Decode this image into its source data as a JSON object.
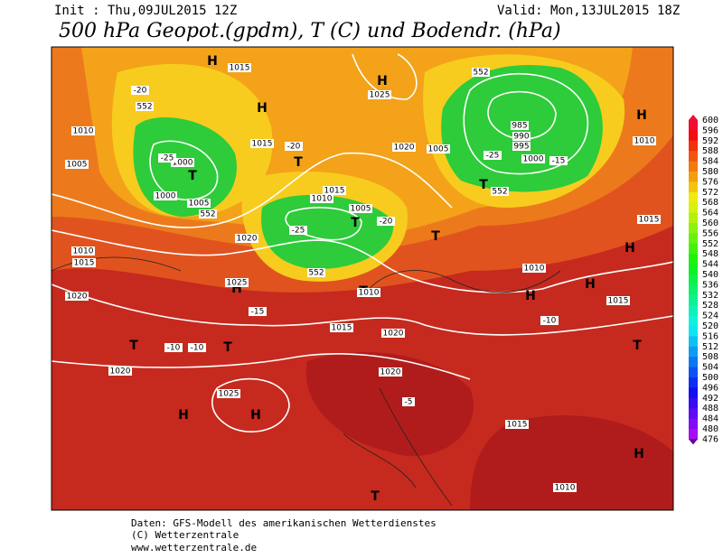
{
  "header": {
    "init": "Init : Thu,09JUL2015 12Z",
    "valid": "Valid: Mon,13JUL2015 18Z",
    "title": "500 hPa Geopot.(gpdm), T (C) und Bodendr. (hPa)"
  },
  "colorbar": {
    "values": [
      "600",
      "596",
      "592",
      "588",
      "584",
      "580",
      "576",
      "572",
      "568",
      "564",
      "560",
      "556",
      "552",
      "548",
      "544",
      "540",
      "536",
      "532",
      "528",
      "524",
      "520",
      "516",
      "512",
      "508",
      "504",
      "500",
      "496",
      "492",
      "488",
      "484",
      "480",
      "476"
    ]
  },
  "map": {
    "labels": [
      "H",
      "H",
      "H",
      "H",
      "H",
      "H",
      "H",
      "H",
      "H",
      "H",
      "H",
      "T",
      "T",
      "T",
      "T",
      "T",
      "T",
      "T",
      "T",
      "T",
      "T",
      "1015",
      "1025",
      "1010",
      "1005",
      "1000",
      "1000",
      "1005",
      "1015",
      "1020",
      "1015",
      "1010",
      "1005",
      "1020",
      "1010",
      "1015",
      "1020",
      "1025",
      "1010",
      "1015",
      "1020",
      "1020",
      "1025",
      "1020",
      "985",
      "990",
      "995",
      "1000",
      "1005",
      "1010",
      "1015",
      "1015",
      "1010",
      "1010",
      "1015",
      "552",
      "552",
      "552",
      "552",
      "552",
      "-20",
      "-25",
      "-20",
      "-25",
      "-20",
      "-25",
      "-15",
      "-15",
      "-10",
      "-10",
      "-10",
      "-5"
    ]
  },
  "footer": {
    "lines": [
      "Daten: GFS-Modell des amerikanischen Wetterdienstes",
      "(C) Wetterzentrale",
      "www.wetterzentrale.de"
    ]
  }
}
